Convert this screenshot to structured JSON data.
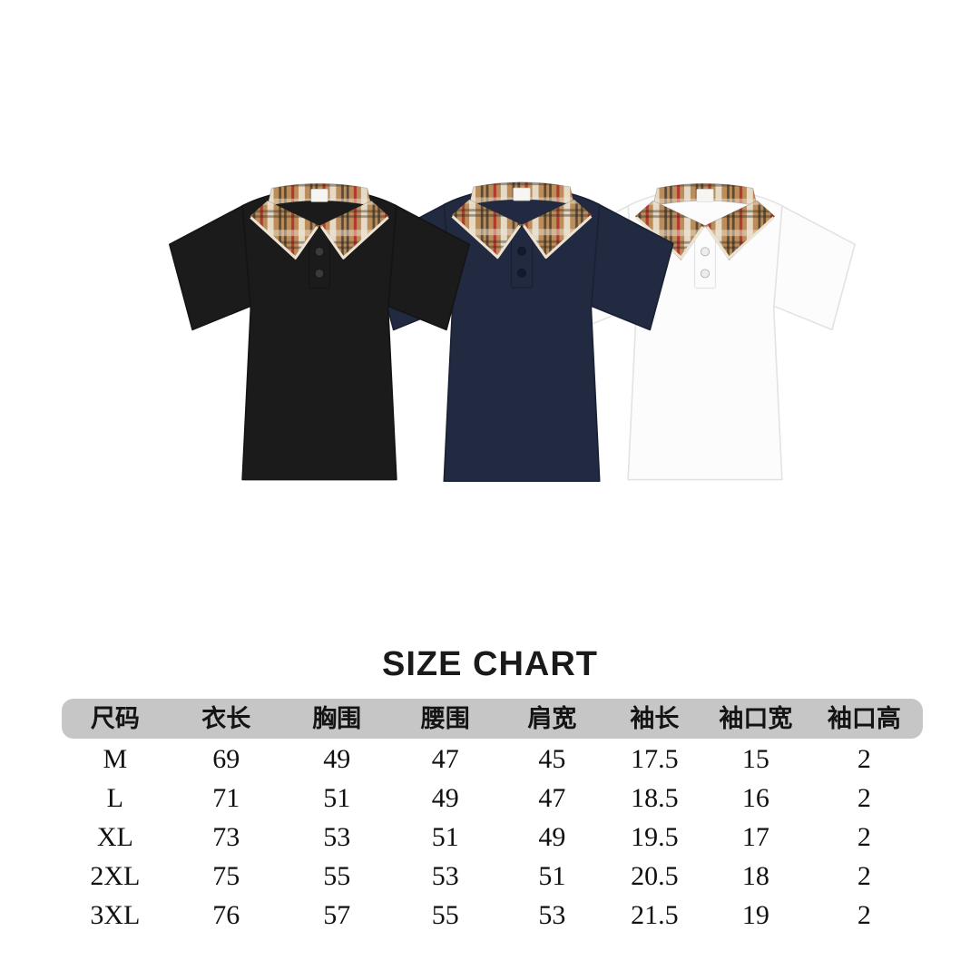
{
  "colors": {
    "page_bg": "#ffffff",
    "title": "#1a1a1a",
    "header_bg": "#c6c6c6",
    "header_text": "#141414",
    "row_text": "#101010",
    "collar_base": "#bb8d5a",
    "collar_light": "#ece3d3",
    "collar_dark": "#2b2620",
    "collar_red": "#b02420",
    "label": "#f6f5f2"
  },
  "products": {
    "description": "three short-sleeve polo shirts with tan check collars",
    "items": [
      {
        "id": "polo-black",
        "color_name": "black",
        "body": "#1b1b1b",
        "outline": "#141414",
        "button": "#3a3a3a"
      },
      {
        "id": "polo-navy",
        "color_name": "navy",
        "body": "#222a41",
        "outline": "#1a2033",
        "button": "#131a2c"
      },
      {
        "id": "polo-white",
        "color_name": "white",
        "body": "#fcfcfc",
        "outline": "#e3e3e3",
        "button": "#ededed"
      }
    ]
  },
  "chart_data": {
    "type": "table",
    "title": "SIZE CHART",
    "columns": [
      "尺码",
      "衣长",
      "胸围",
      "腰围",
      "肩宽",
      "袖长",
      "袖口宽",
      "袖口高"
    ],
    "rows": [
      [
        "M",
        "69",
        "49",
        "47",
        "45",
        "17.5",
        "15",
        "2"
      ],
      [
        "L",
        "71",
        "51",
        "49",
        "47",
        "18.5",
        "16",
        "2"
      ],
      [
        "XL",
        "73",
        "53",
        "51",
        "49",
        "19.5",
        "17",
        "2"
      ],
      [
        "2XL",
        "75",
        "55",
        "53",
        "51",
        "20.5",
        "18",
        "2"
      ],
      [
        "3XL",
        "76",
        "57",
        "55",
        "53",
        "21.5",
        "19",
        "2"
      ]
    ],
    "layout": {
      "header_style": "gray rounded bar",
      "grid": "off",
      "rows_area": "plain white"
    }
  }
}
